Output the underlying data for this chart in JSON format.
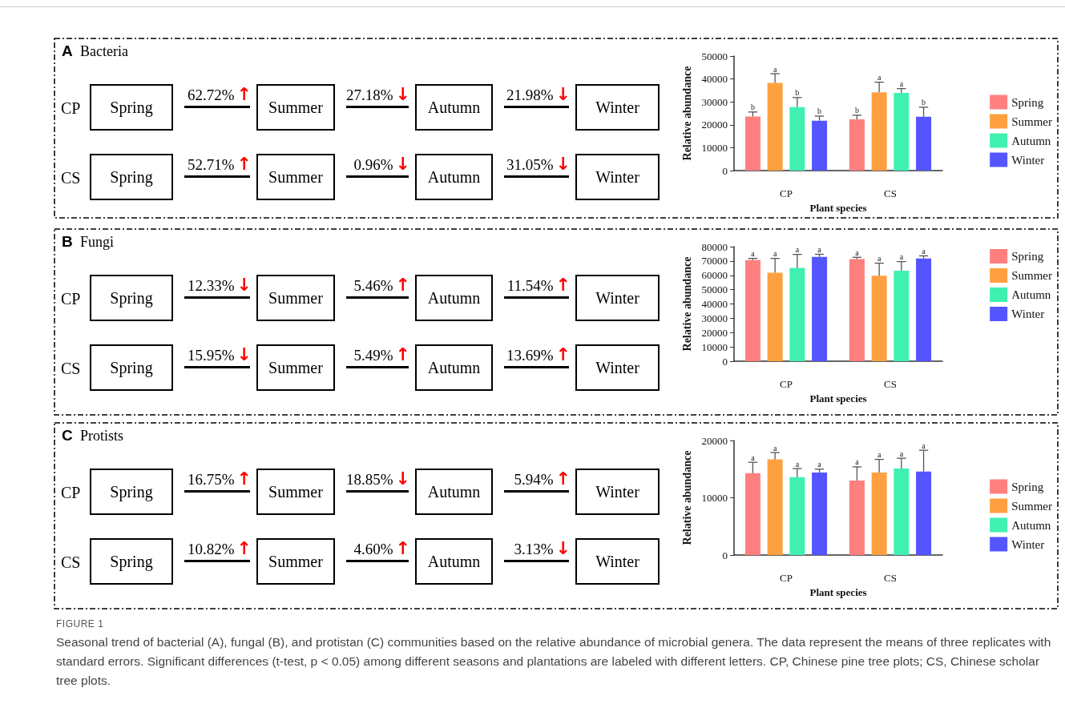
{
  "chart_data": [
    {
      "type": "other",
      "title": "A",
      "subtitle": "Bacteria",
      "categories": [
        "Spring",
        "Summer",
        "Autumn",
        "Winter"
      ],
      "series": [
        {
          "name": "CP",
          "values": [
            null,
            62.72,
            27.18,
            21.98
          ],
          "value_labels": [
            null,
            "62.72%↑",
            "27.18%↓",
            "21.98%↓"
          ]
        },
        {
          "name": "CS",
          "values": [
            null,
            52.71,
            0.96,
            31.05
          ],
          "value_labels": [
            null,
            "52.71%↑",
            "0.96%↓",
            "31.05%↓"
          ]
        }
      ]
    },
    {
      "type": "bar",
      "categories": [
        "CP",
        "CS"
      ],
      "xlabel": "Plant species",
      "ylabel": "Relative abundance",
      "ylim": [
        0,
        50000
      ],
      "yticks": [
        0,
        10000,
        20000,
        30000,
        40000,
        50000
      ],
      "legend": "right",
      "series": [
        {
          "name": "Spring",
          "color": "#ff7f7f",
          "values": [
            23600,
            22400
          ],
          "errors": [
            [
              23600,
              25600
            ],
            [
              22400,
              24200
            ]
          ],
          "value_labels": [
            "b",
            "b"
          ]
        },
        {
          "name": "Summer",
          "color": "#ffa040",
          "values": [
            38300,
            34200
          ],
          "errors": [
            [
              38300,
              42300
            ],
            [
              34200,
              38600
            ]
          ],
          "value_labels": [
            "a",
            "a"
          ]
        },
        {
          "name": "Autumn",
          "color": "#40f0b0",
          "values": [
            27700,
            33900
          ],
          "errors": [
            [
              27700,
              31900
            ],
            [
              33900,
              35800
            ]
          ],
          "value_labels": [
            "b",
            "a"
          ]
        },
        {
          "name": "Winter",
          "color": "#5555ff",
          "values": [
            21800,
            23500
          ],
          "errors": [
            [
              21800,
              23800
            ],
            [
              23500,
              27700
            ]
          ],
          "value_labels": [
            "b",
            "b"
          ]
        }
      ]
    },
    {
      "type": "other",
      "title": "B",
      "subtitle": "Fungi",
      "categories": [
        "Spring",
        "Summer",
        "Autumn",
        "Winter"
      ],
      "series": [
        {
          "name": "CP",
          "values": [
            null,
            12.33,
            5.46,
            11.54
          ],
          "value_labels": [
            null,
            "12.33%↓",
            "5.46%↑",
            "11.54%↑"
          ]
        },
        {
          "name": "CS",
          "values": [
            null,
            15.95,
            5.49,
            13.69
          ],
          "value_labels": [
            null,
            "15.95%↓",
            "5.49%↑",
            "13.69%↑"
          ]
        }
      ]
    },
    {
      "type": "bar",
      "categories": [
        "CP",
        "CS"
      ],
      "xlabel": "Plant species",
      "ylabel": "Relative abundance",
      "ylim": [
        0,
        80000
      ],
      "yticks": [
        0,
        10000,
        20000,
        30000,
        40000,
        50000,
        60000,
        70000,
        80000
      ],
      "legend": "top right",
      "series": [
        {
          "name": "Spring",
          "color": "#ff7f7f",
          "values": [
            70600,
            71300
          ],
          "errors": [
            [
              70600,
              71800
            ],
            [
              71300,
              72600
            ]
          ],
          "value_labels": [
            "a",
            "a"
          ]
        },
        {
          "name": "Summer",
          "color": "#ffa040",
          "values": [
            61900,
            59800
          ],
          "errors": [
            [
              61900,
              71800
            ],
            [
              59800,
              68500
            ]
          ],
          "value_labels": [
            "a",
            "a"
          ]
        },
        {
          "name": "Autumn",
          "color": "#40f0b0",
          "values": [
            65200,
            63200
          ],
          "errors": [
            [
              65200,
              74600
            ],
            [
              63200,
              69600
            ]
          ],
          "value_labels": [
            "a",
            "a"
          ]
        },
        {
          "name": "Winter",
          "color": "#5555ff",
          "values": [
            72900,
            71800
          ],
          "errors": [
            [
              72900,
              74700
            ],
            [
              71800,
              73600
            ]
          ],
          "value_labels": [
            "a",
            "a"
          ]
        }
      ]
    },
    {
      "type": "other",
      "title": "C",
      "subtitle": "Protists",
      "categories": [
        "Spring",
        "Summer",
        "Autumn",
        "Winter"
      ],
      "series": [
        {
          "name": "CP",
          "values": [
            null,
            16.75,
            18.85,
            5.94
          ],
          "value_labels": [
            null,
            "16.75%↑",
            "18.85%↓",
            "5.94%↑"
          ]
        },
        {
          "name": "CS",
          "values": [
            null,
            10.82,
            4.6,
            3.13
          ],
          "value_labels": [
            null,
            "10.82%↑",
            "4.60%↑",
            "3.13%↓"
          ]
        }
      ]
    },
    {
      "type": "bar",
      "categories": [
        "CP",
        "CS"
      ],
      "xlabel": "Plant species",
      "ylabel": "Relative abundance",
      "ylim": [
        0,
        20000
      ],
      "yticks": [
        0,
        10000,
        20000
      ],
      "legend": "right",
      "series": [
        {
          "name": "Spring",
          "color": "#ff7f7f",
          "values": [
            14300,
            13000
          ],
          "errors": [
            [
              14300,
              16200
            ],
            [
              13000,
              15400
            ]
          ],
          "value_labels": [
            "a",
            "a"
          ]
        },
        {
          "name": "Summer",
          "color": "#ffa040",
          "values": [
            16700,
            14400
          ],
          "errors": [
            [
              16700,
              17900
            ],
            [
              14400,
              16700
            ]
          ],
          "value_labels": [
            "a",
            "a"
          ]
        },
        {
          "name": "Autumn",
          "color": "#40f0b0",
          "values": [
            13600,
            15100
          ],
          "errors": [
            [
              13600,
              15100
            ],
            [
              15100,
              16900
            ]
          ],
          "value_labels": [
            "a",
            "a"
          ]
        },
        {
          "name": "Winter",
          "color": "#5555ff",
          "values": [
            14400,
            14600
          ],
          "errors": [
            [
              14400,
              15000
            ],
            [
              14600,
              18300
            ]
          ],
          "value_labels": [
            "a",
            "a"
          ]
        }
      ]
    },
    {
      "type": "other",
      "title": "FIGURE 1",
      "annotations": [
        "Seasonal trend of bacterial (A), fungal (B), and protistan (C) communities based on the relative abundance of microbial genera. The data represent the means of three replicates with standard errors. Significant differences (t-test, p < 0.05) among different seasons and plantations are labeled with different letters. CP, Chinese pine tree plots; CS, Chinese scholar tree plots."
      ]
    }
  ]
}
